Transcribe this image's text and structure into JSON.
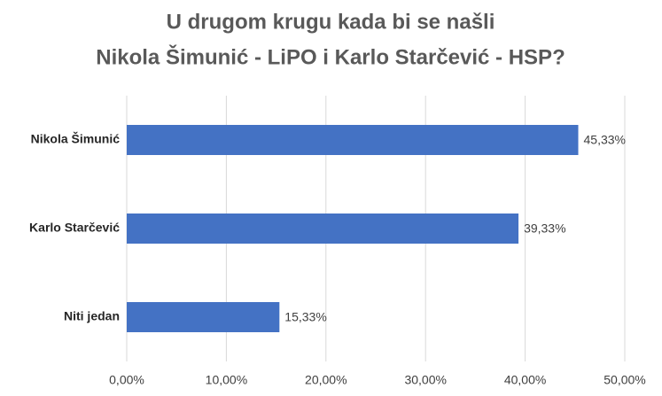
{
  "chart_data": {
    "type": "bar",
    "orientation": "horizontal",
    "title": [
      "U drugom krugu kada bi se našli",
      "Nikola Šimunić - LiPO i Karlo Starčević - HSP?"
    ],
    "categories": [
      "Nikola Šimunić",
      "Karlo Starčević",
      "Niti jedan"
    ],
    "values": [
      45.33,
      39.33,
      15.33
    ],
    "value_labels": [
      "45,33%",
      "39,33%",
      "15,33%"
    ],
    "color": "#4472c4",
    "xlim": [
      0,
      50
    ],
    "xticks": [
      {
        "value": 0,
        "label": "0,00%"
      },
      {
        "value": 10,
        "label": "10,00%"
      },
      {
        "value": 20,
        "label": "20,00%"
      },
      {
        "value": 30,
        "label": "30,00%"
      },
      {
        "value": 40,
        "label": "40,00%"
      },
      {
        "value": 50,
        "label": "50,00%"
      }
    ],
    "grid": true
  }
}
